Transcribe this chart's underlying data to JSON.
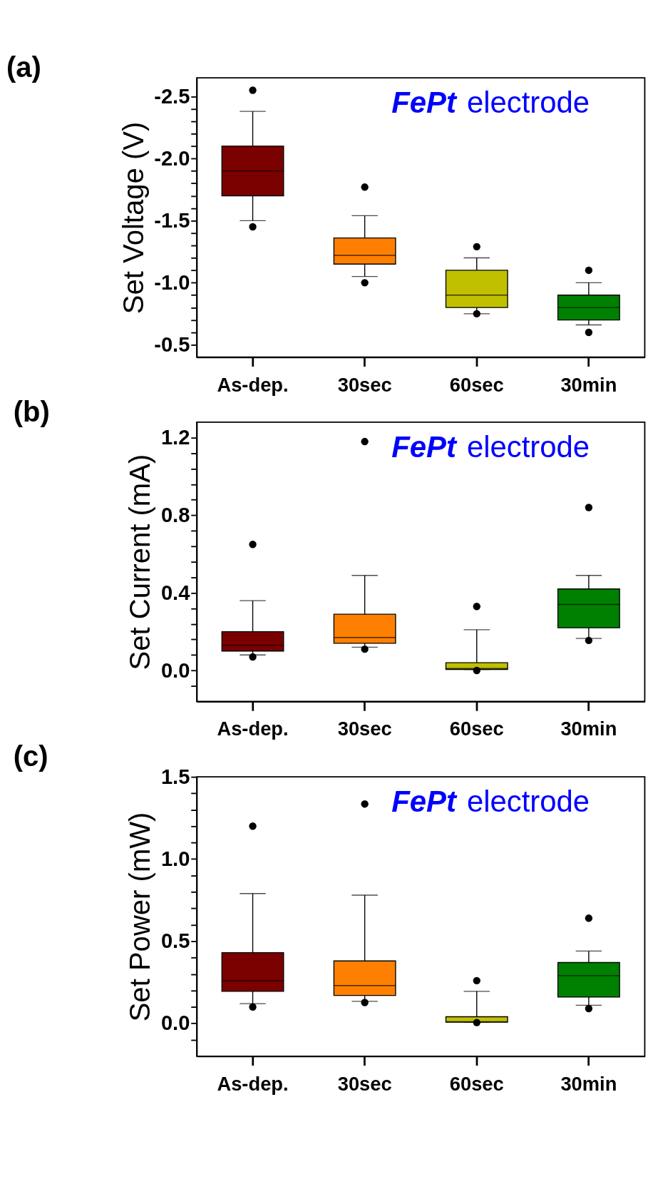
{
  "chart_data": [
    {
      "type": "box",
      "title": "(a)",
      "ylabel": "Set Voltage (V)",
      "categories": [
        "As-dep.",
        "30sec",
        "60sec",
        "30min"
      ],
      "colors": [
        "#7b0000",
        "#ff8000",
        "#c0c000",
        "#008000"
      ],
      "boxes": [
        {
          "low": -2.38,
          "q1": -2.1,
          "median": -1.9,
          "q3": -1.7,
          "high": -1.5,
          "outliers": [
            -2.55,
            -1.45
          ]
        },
        {
          "low": -1.54,
          "q1": -1.36,
          "median": -1.22,
          "q3": -1.15,
          "high": -1.05,
          "outliers": [
            -1.77,
            -1.0
          ]
        },
        {
          "low": -1.2,
          "q1": -1.1,
          "median": -0.9,
          "q3": -0.8,
          "high": -0.75,
          "outliers": [
            -1.29,
            -0.75
          ]
        },
        {
          "low": -1.0,
          "q1": -0.9,
          "median": -0.8,
          "q3": -0.7,
          "high": -0.66,
          "outliers": [
            -1.1,
            -0.6
          ]
        }
      ],
      "ylim": [
        -0.4,
        -2.65
      ],
      "yticks": [
        {
          "value": -2.5,
          "label": "-2.5"
        },
        {
          "value": -2.4,
          "label": null
        },
        {
          "value": -2.3,
          "label": null
        },
        {
          "value": -2.2,
          "label": null
        },
        {
          "value": -2.1,
          "label": null
        },
        {
          "value": -2.0,
          "label": "-2.0"
        },
        {
          "value": -1.9,
          "label": null
        },
        {
          "value": -1.8,
          "label": null
        },
        {
          "value": -1.7,
          "label": null
        },
        {
          "value": -1.6,
          "label": null
        },
        {
          "value": -1.5,
          "label": "-1.5"
        },
        {
          "value": -1.4,
          "label": null
        },
        {
          "value": -1.3,
          "label": null
        },
        {
          "value": -1.2,
          "label": null
        },
        {
          "value": -1.1,
          "label": null
        },
        {
          "value": -1.0,
          "label": "-1.0"
        },
        {
          "value": -0.9,
          "label": null
        },
        {
          "value": -0.8,
          "label": null
        },
        {
          "value": -0.7,
          "label": null
        },
        {
          "value": -0.6,
          "label": null
        },
        {
          "value": -0.5,
          "label": "-0.5"
        }
      ],
      "annotations": [
        "FePt",
        "electrode"
      ]
    },
    {
      "type": "box",
      "title": "(b)",
      "ylabel": "Set Current (mA)",
      "categories": [
        "As-dep.",
        "30sec",
        "60sec",
        "30min"
      ],
      "colors": [
        "#7b0000",
        "#ff8000",
        "#c0c000",
        "#008000"
      ],
      "boxes": [
        {
          "low": 0.08,
          "q1": 0.1,
          "median": 0.13,
          "q3": 0.2,
          "high": 0.36,
          "outliers": [
            0.65,
            0.07
          ]
        },
        {
          "low": 0.12,
          "q1": 0.14,
          "median": 0.17,
          "q3": 0.29,
          "high": 0.49,
          "outliers": [
            1.18,
            0.11
          ]
        },
        {
          "low": 0.005,
          "q1": 0.005,
          "median": 0.01,
          "q3": 0.04,
          "high": 0.21,
          "outliers": [
            0.33,
            0.0
          ]
        },
        {
          "low": 0.165,
          "q1": 0.22,
          "median": 0.34,
          "q3": 0.42,
          "high": 0.49,
          "outliers": [
            0.84,
            0.155
          ]
        }
      ],
      "ylim": [
        -0.16,
        1.28
      ],
      "yticks": [
        {
          "value": -0.08,
          "label": null
        },
        {
          "value": 0,
          "label": "0.0"
        },
        {
          "value": 0.08,
          "label": null
        },
        {
          "value": 0.16,
          "label": null
        },
        {
          "value": 0.24,
          "label": null
        },
        {
          "value": 0.32,
          "label": null
        },
        {
          "value": 0.4,
          "label": "0.4"
        },
        {
          "value": 0.48,
          "label": null
        },
        {
          "value": 0.56,
          "label": null
        },
        {
          "value": 0.64,
          "label": null
        },
        {
          "value": 0.72,
          "label": null
        },
        {
          "value": 0.8,
          "label": "0.8"
        },
        {
          "value": 0.88,
          "label": null
        },
        {
          "value": 0.96,
          "label": null
        },
        {
          "value": 1.04,
          "label": null
        },
        {
          "value": 1.12,
          "label": null
        },
        {
          "value": 1.2,
          "label": "1.2"
        }
      ],
      "annotations": [
        "FePt",
        "electrode"
      ]
    },
    {
      "type": "box",
      "title": "(c)",
      "ylabel": "Set Power (mW)",
      "categories": [
        "As-dep.",
        "30sec",
        "60sec",
        "30min"
      ],
      "colors": [
        "#7b0000",
        "#ff8000",
        "#c0c000",
        "#008000"
      ],
      "boxes": [
        {
          "low": 0.12,
          "q1": 0.195,
          "median": 0.26,
          "q3": 0.43,
          "high": 0.79,
          "outliers": [
            1.2,
            0.1
          ]
        },
        {
          "low": 0.134,
          "q1": 0.17,
          "median": 0.23,
          "q3": 0.38,
          "high": 0.78,
          "outliers": [
            1.335,
            0.127
          ]
        },
        {
          "low": 0.007,
          "q1": 0.007,
          "median": 0.01,
          "q3": 0.04,
          "high": 0.195,
          "outliers": [
            0.26,
            0.005
          ]
        },
        {
          "low": 0.11,
          "q1": 0.16,
          "median": 0.29,
          "q3": 0.37,
          "high": 0.44,
          "outliers": [
            0.64,
            0.09
          ]
        }
      ],
      "ylim": [
        -0.2,
        1.5
      ],
      "yticks": [
        {
          "value": -0.1,
          "label": null
        },
        {
          "value": 0,
          "label": "0.0"
        },
        {
          "value": 0.1,
          "label": null
        },
        {
          "value": 0.2,
          "label": null
        },
        {
          "value": 0.3,
          "label": null
        },
        {
          "value": 0.4,
          "label": null
        },
        {
          "value": 0.5,
          "label": "0.5"
        },
        {
          "value": 0.6,
          "label": null
        },
        {
          "value": 0.7,
          "label": null
        },
        {
          "value": 0.8,
          "label": null
        },
        {
          "value": 0.9,
          "label": null
        },
        {
          "value": 1.0,
          "label": "1.0"
        },
        {
          "value": 1.1,
          "label": null
        },
        {
          "value": 1.2,
          "label": null
        },
        {
          "value": 1.3,
          "label": null
        },
        {
          "value": 1.4,
          "label": null
        },
        {
          "value": 1.5,
          "label": "1.5"
        }
      ],
      "annotations": [
        "FePt",
        "electrode"
      ]
    }
  ]
}
